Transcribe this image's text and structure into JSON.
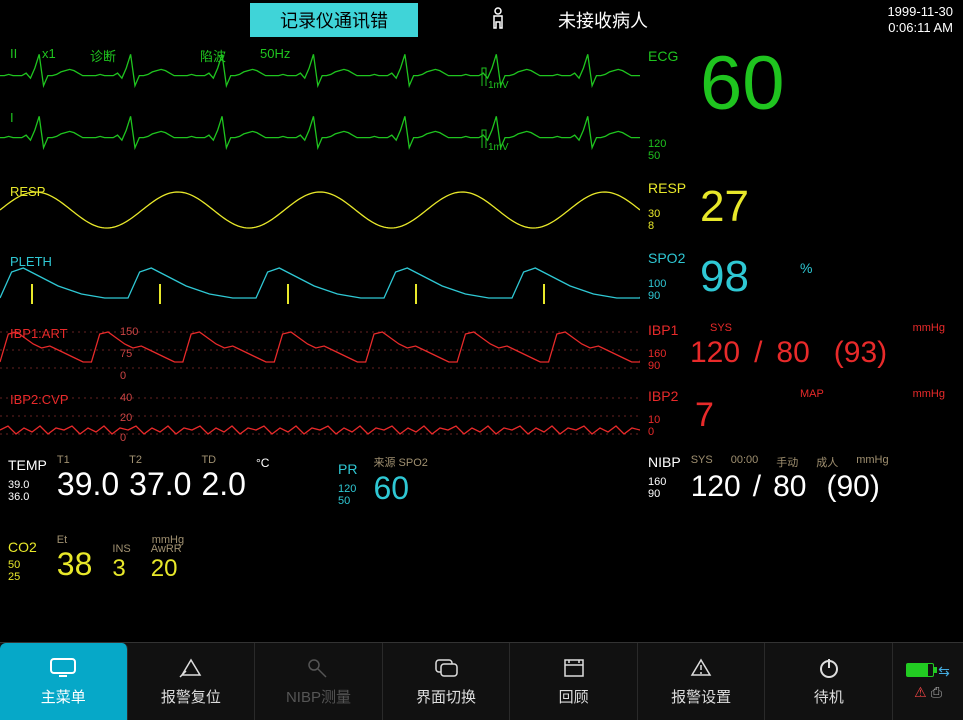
{
  "colors": {
    "ecg": "#1fc41f",
    "resp": "#e8e82a",
    "spo2": "#2fc8d4",
    "ibp": "#e82a2a",
    "temp": "#ffffff",
    "nibp": "#ffffff",
    "co2": "#e8e82a",
    "dim": "#a09070"
  },
  "topbar": {
    "alarm_text": "记录仪通讯错",
    "patient_status": "未接收病人",
    "date": "1999-11-30",
    "time": "0:06:11 AM"
  },
  "waves": {
    "ecg1": {
      "label_lead": "II",
      "label_gain": "x1",
      "label_mode": "诊断",
      "label_filter": "陷波",
      "label_freq": "50Hz",
      "scale_mark": "1mV"
    },
    "ecg2": {
      "label_lead": "I",
      "scale_mark": "1mV"
    },
    "resp": {
      "label": "RESP"
    },
    "pleth": {
      "label": "PLETH"
    },
    "ibp1": {
      "label": "IBP1:ART",
      "scale_top": "150",
      "scale_mid": "75",
      "scale_bot": "0"
    },
    "ibp2": {
      "label": "IBP2:CVP",
      "scale_top": "40",
      "scale_mid": "20",
      "scale_bot": "0"
    }
  },
  "numerics": {
    "ecg": {
      "label": "ECG",
      "value": "60",
      "limit_hi": "120",
      "limit_lo": "50",
      "fontsize": 76
    },
    "resp": {
      "label": "RESP",
      "value": "27",
      "limit_hi": "30",
      "limit_lo": "8",
      "fontsize": 44
    },
    "spo2": {
      "label": "SPO2",
      "value": "98",
      "unit": "%",
      "limit_hi": "100",
      "limit_lo": "90",
      "fontsize": 44
    },
    "ibp1": {
      "label": "IBP1",
      "sub": "SYS",
      "unit": "mmHg",
      "sys": "120",
      "sep": "/",
      "dia": "80",
      "mean": "(93)",
      "limit_hi": "160",
      "limit_lo": "90",
      "fontsize": 30
    },
    "ibp2": {
      "label": "IBP2",
      "sub": "MAP",
      "unit": "mmHg",
      "value": "7",
      "limit_hi": "10",
      "limit_lo": "0",
      "fontsize": 34
    }
  },
  "temp": {
    "label": "TEMP",
    "unit": "°C",
    "t1_label": "T1",
    "t1": "39.0",
    "t2_label": "T2",
    "t2": "37.0",
    "td_label": "TD",
    "td": "2.0",
    "limit_hi": "39.0",
    "limit_lo": "36.0",
    "fontsize": 32
  },
  "pr": {
    "label": "PR",
    "src_label": "来源",
    "src": "SPO2",
    "value": "60",
    "limit_hi": "120",
    "limit_lo": "50",
    "fontsize": 32
  },
  "nibp": {
    "label": "NIBP",
    "sub": "SYS",
    "time": "00:00",
    "mode": "手动",
    "patient": "成人",
    "unit": "mmHg",
    "sys": "120",
    "sep": "/",
    "dia": "80",
    "mean": "(90)",
    "limit_hi": "160",
    "limit_lo": "90",
    "fontsize": 30
  },
  "co2": {
    "label": "CO2",
    "unit": "mmHg",
    "et_label": "Et",
    "et": "38",
    "ins_label": "INS",
    "ins": "3",
    "awrr_label": "AwRR",
    "awrr": "20",
    "limit_hi": "50",
    "limit_lo": "25",
    "fontsize": 32
  },
  "menu": {
    "main": "主菜单",
    "alarm_reset": "报警复位",
    "nibp_measure": "NIBP测量",
    "layout": "界面切换",
    "review": "回顾",
    "alarm_setup": "报警设置",
    "standby": "待机"
  },
  "wave_data": {
    "ecg_cycle": [
      22,
      22,
      21,
      22,
      22,
      22,
      20,
      24,
      16,
      5,
      30,
      22,
      22,
      21,
      19,
      18,
      17,
      18,
      20,
      22,
      22
    ],
    "resp_amp": 18,
    "resp_cycles": 4.5,
    "pleth_cycle": [
      38,
      12,
      8,
      14,
      20,
      26,
      30,
      34,
      36,
      38,
      38
    ],
    "art_cycle": [
      34,
      6,
      4,
      10,
      16,
      20,
      18,
      22,
      26,
      30,
      34
    ],
    "cvp_cycle": [
      22,
      18,
      26,
      20,
      24,
      18,
      26,
      20
    ]
  }
}
